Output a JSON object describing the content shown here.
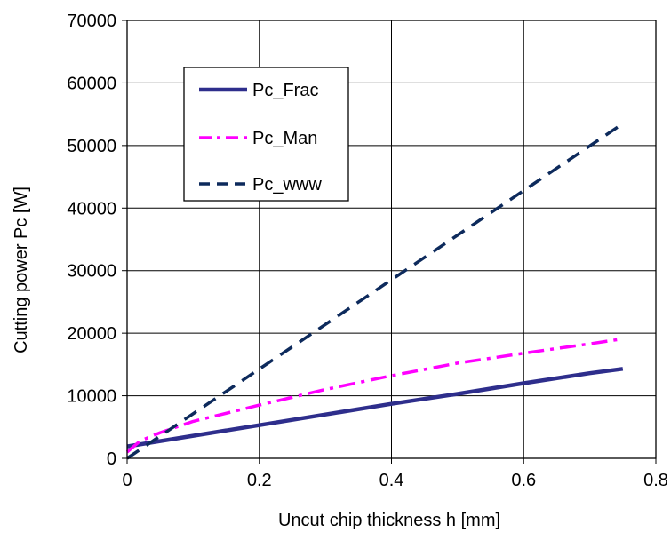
{
  "chart_data": {
    "type": "line",
    "title": "",
    "xlabel": "Uncut chip thickness h [mm]",
    "ylabel": "Cutting power Pc [W]",
    "xlim": [
      0,
      0.8
    ],
    "ylim": [
      0,
      70000
    ],
    "xticks": [
      0,
      0.2,
      0.4,
      0.6,
      0.8
    ],
    "xtick_labels": [
      "0",
      "0.2",
      "0.4",
      "0.6",
      "0.8"
    ],
    "yticks": [
      0,
      10000,
      20000,
      30000,
      40000,
      50000,
      60000,
      70000
    ],
    "ytick_labels": [
      "0",
      "10000",
      "20000",
      "30000",
      "40000",
      "50000",
      "60000",
      "70000"
    ],
    "grid": true,
    "legend_position": "top-left",
    "series": [
      {
        "name": "Pc_Frac",
        "color": "#2E2E8C",
        "style": "solid",
        "x": [
          0,
          0.1,
          0.2,
          0.3,
          0.4,
          0.5,
          0.6,
          0.7,
          0.75
        ],
        "y": [
          1900,
          3600,
          5300,
          7000,
          8700,
          10300,
          12000,
          13600,
          14300
        ]
      },
      {
        "name": "Pc_Man",
        "color": "#FF00FF",
        "style": "dashdot",
        "x": [
          0,
          0.02,
          0.05,
          0.1,
          0.2,
          0.3,
          0.4,
          0.5,
          0.6,
          0.7,
          0.75
        ],
        "y": [
          1000,
          2800,
          4100,
          5900,
          8500,
          11000,
          13200,
          15200,
          16800,
          18300,
          19100
        ]
      },
      {
        "name": "Pc_www",
        "color": "#0D2A5C",
        "style": "dashed",
        "x": [
          0,
          0.75
        ],
        "y": [
          0,
          53500
        ]
      }
    ]
  }
}
